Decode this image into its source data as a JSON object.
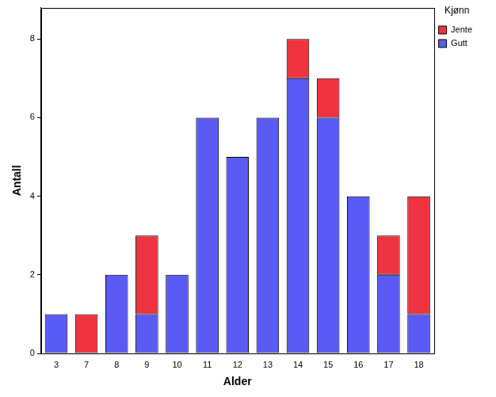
{
  "chart_data": {
    "type": "bar",
    "stacked": true,
    "x_label": "Alder",
    "y_label": "Antall",
    "legend_title": "Kjønn",
    "legend": "right",
    "categories": [
      "3",
      "7",
      "8",
      "9",
      "10",
      "11",
      "12",
      "13",
      "14",
      "15",
      "16",
      "17",
      "18"
    ],
    "series": [
      {
        "name": "Gutt",
        "color": "#5a5af5",
        "values": [
          1,
          0,
          2,
          1,
          2,
          6,
          5,
          6,
          7,
          6,
          4,
          2,
          1
        ]
      },
      {
        "name": "Jente",
        "color": "#ef3340",
        "values": [
          0,
          1,
          0,
          2,
          0,
          0,
          0,
          0,
          1,
          1,
          0,
          1,
          3
        ]
      }
    ],
    "ylim": [
      0,
      8.8
    ],
    "yticks": [
      0,
      2,
      4,
      6,
      8
    ],
    "grid": false
  }
}
